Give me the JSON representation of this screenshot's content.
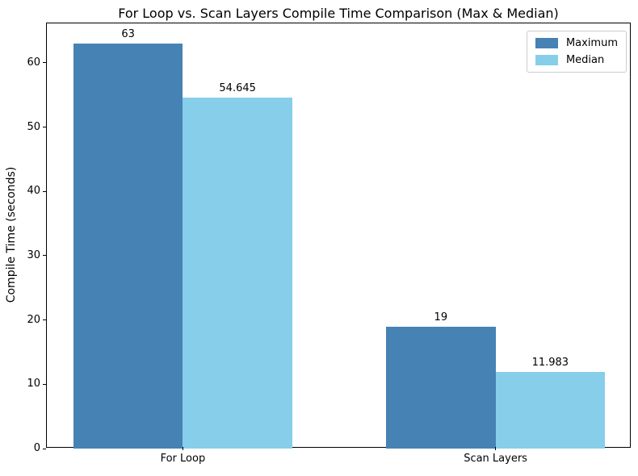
{
  "chart_data": {
    "type": "bar",
    "title": "For Loop vs. Scan Layers Compile Time Comparison (Max & Median)",
    "xlabel": "",
    "ylabel": "Compile Time (seconds)",
    "categories": [
      "For Loop",
      "Scan Layers"
    ],
    "series": [
      {
        "name": "Maximum",
        "color": "#4682B4",
        "values": [
          63,
          19
        ]
      },
      {
        "name": "Median",
        "color": "#87CEEB",
        "values": [
          54.645,
          11.983
        ]
      }
    ],
    "bar_value_labels": {
      "Maximum": [
        "63",
        "19"
      ],
      "Median": [
        "54.645",
        "11.983"
      ]
    },
    "yticks": [
      0,
      10,
      20,
      30,
      40,
      50,
      60
    ],
    "ylim": [
      0,
      66.15
    ],
    "xlim": [
      -0.435,
      1.435
    ],
    "bar_width": 0.35,
    "grid": false,
    "legend_position": "upper right"
  }
}
